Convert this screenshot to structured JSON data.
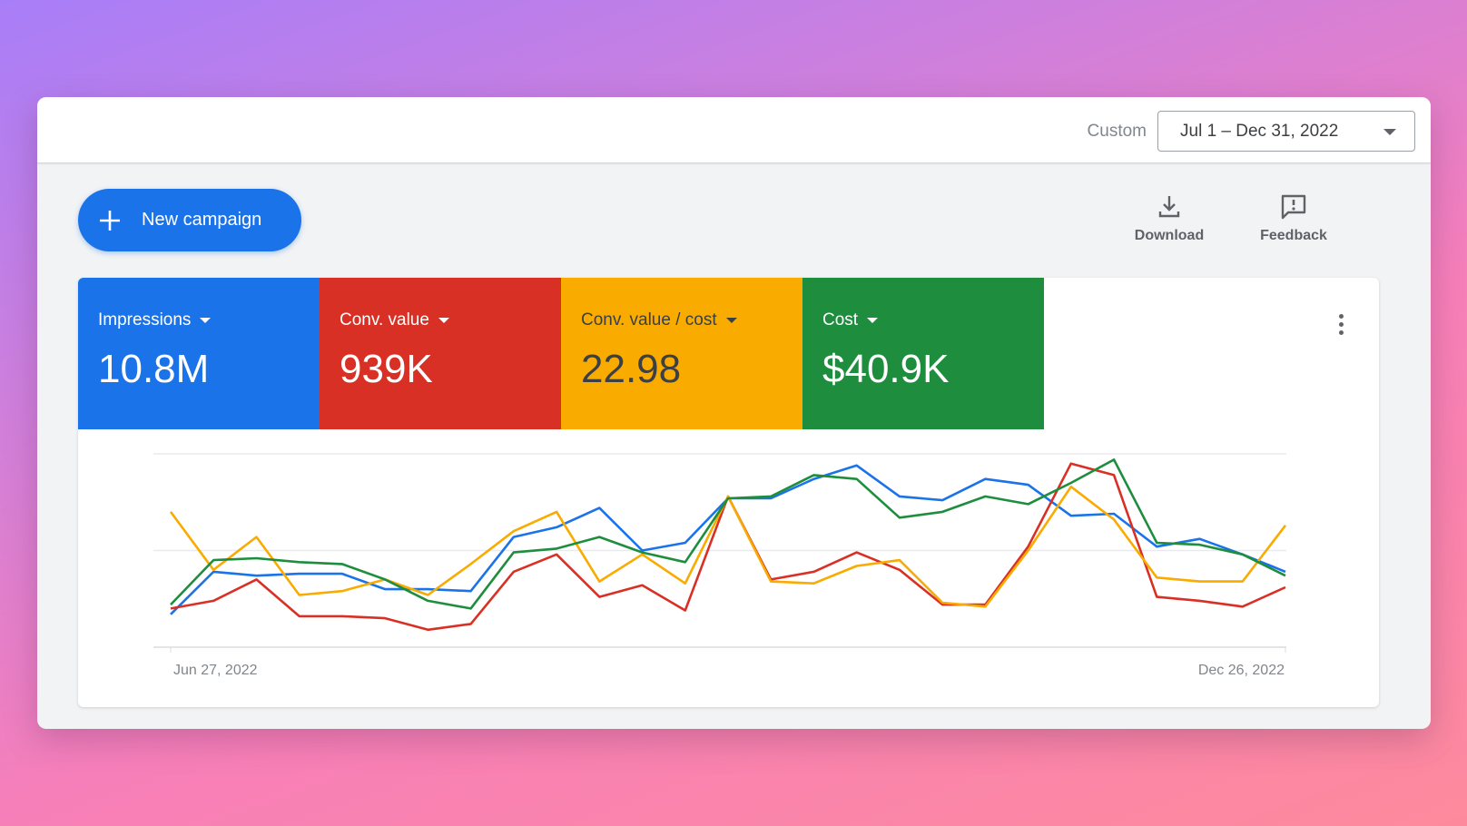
{
  "header": {
    "range_label": "Custom",
    "date_range": "Jul 1 – Dec 31, 2022"
  },
  "toolbar": {
    "new_campaign_label": "New campaign",
    "download_label": "Download",
    "feedback_label": "Feedback"
  },
  "metrics": [
    {
      "name": "Impressions",
      "value": "10.8M",
      "color": "#1a73e8"
    },
    {
      "name": "Conv. value",
      "value": "939K",
      "color": "#d93025"
    },
    {
      "name": "Conv. value / cost",
      "value": "22.98",
      "color": "#f9ab00"
    },
    {
      "name": "Cost",
      "value": "$40.9K",
      "color": "#1e8e3e"
    }
  ],
  "chart_data": {
    "type": "line",
    "x_start_label": "Jun 27, 2022",
    "x_end_label": "Dec 26, 2022",
    "ylim": [
      0,
      1
    ],
    "gridlines": 3,
    "grid": true,
    "series": [
      {
        "color": "#1a73e8",
        "values": [
          0.17,
          0.39,
          0.37,
          0.38,
          0.38,
          0.3,
          0.3,
          0.29,
          0.57,
          0.62,
          0.72,
          0.5,
          0.54,
          0.77,
          0.77,
          0.87,
          0.94,
          0.78,
          0.76,
          0.87,
          0.84,
          0.68,
          0.69,
          0.52,
          0.56,
          0.48,
          0.39
        ]
      },
      {
        "color": "#d93025",
        "values": [
          0.2,
          0.24,
          0.35,
          0.16,
          0.16,
          0.15,
          0.09,
          0.12,
          0.39,
          0.48,
          0.26,
          0.32,
          0.19,
          0.78,
          0.35,
          0.39,
          0.49,
          0.4,
          0.22,
          0.22,
          0.52,
          0.95,
          0.89,
          0.26,
          0.24,
          0.21,
          0.31
        ]
      },
      {
        "color": "#f9ab00",
        "values": [
          0.7,
          0.4,
          0.57,
          0.27,
          0.29,
          0.35,
          0.27,
          0.43,
          0.6,
          0.7,
          0.34,
          0.48,
          0.33,
          0.78,
          0.34,
          0.33,
          0.42,
          0.45,
          0.23,
          0.21,
          0.5,
          0.83,
          0.66,
          0.36,
          0.34,
          0.34,
          0.63
        ]
      },
      {
        "color": "#1e8e3e",
        "values": [
          0.22,
          0.45,
          0.46,
          0.44,
          0.43,
          0.35,
          0.24,
          0.2,
          0.49,
          0.51,
          0.57,
          0.49,
          0.44,
          0.77,
          0.78,
          0.89,
          0.87,
          0.67,
          0.7,
          0.78,
          0.74,
          0.85,
          0.97,
          0.54,
          0.53,
          0.48,
          0.37
        ]
      }
    ]
  }
}
